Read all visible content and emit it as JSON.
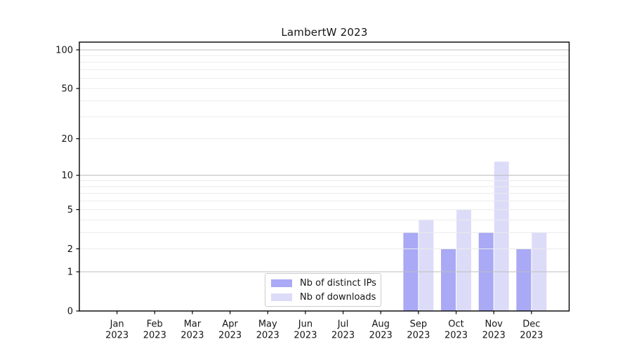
{
  "figure": {
    "title": "LambertW 2023"
  },
  "chart_data": {
    "type": "bar",
    "title": "LambertW 2023",
    "categories": [
      "Jan",
      "Feb",
      "Mar",
      "Apr",
      "May",
      "Jun",
      "Jul",
      "Aug",
      "Sep",
      "Oct",
      "Nov",
      "Dec"
    ],
    "category_year": "2023",
    "series": [
      {
        "name": "Nb of distinct IPs",
        "key": "distinct-ips",
        "color": "#a9a9f5",
        "values": [
          0,
          0,
          0,
          0,
          0,
          0,
          0,
          0,
          3,
          2,
          3,
          2
        ]
      },
      {
        "name": "Nb of downloads",
        "key": "downloads",
        "color": "#dcdcf9",
        "values": [
          0,
          0,
          0,
          0,
          0,
          0,
          0,
          0,
          4,
          5,
          13,
          3
        ]
      }
    ],
    "xlabel": "",
    "ylabel": "",
    "yscale": "log(1+y)",
    "ylim": [
      0,
      115
    ],
    "yticks": [
      0,
      1,
      2,
      5,
      10,
      20,
      50,
      100
    ],
    "major_gridline_values": [
      1,
      10,
      100
    ],
    "minor_gridline_values": [
      2,
      3,
      4,
      5,
      6,
      7,
      8,
      9,
      20,
      30,
      40,
      50,
      60,
      70,
      80,
      90
    ],
    "grid": true,
    "legend_position": "lower center",
    "colors": {
      "distinct_ips_bar": "#a9a9f5",
      "downloads_bar": "#dcdcf9",
      "grid_major": "#bfbfbf",
      "grid_minor": "#ebebeb",
      "spine": "#000000",
      "text": "#151515",
      "legend_border": "#cccccc",
      "background": "#ffffff"
    }
  }
}
